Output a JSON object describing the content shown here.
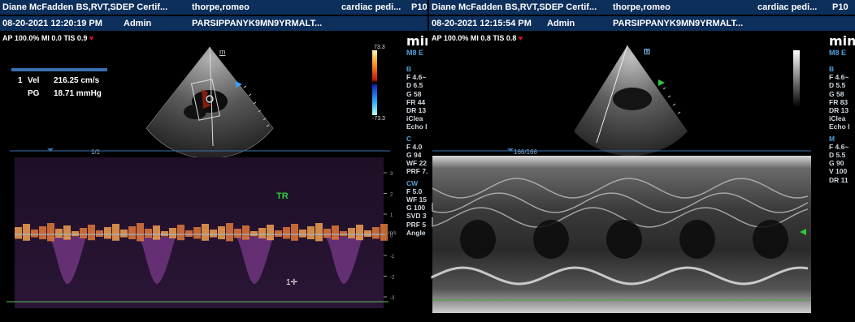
{
  "left": {
    "header": {
      "operator": "Diane McFadden BS,RVT,SDEP Certif...",
      "patient": "thorpe,romeo",
      "study": "cardiac pedi...",
      "probe": "P10",
      "datetime": "08-20-2021 12:20:19 PM",
      "user": "Admin",
      "patient_id": "PARSIPPANYK9MN9YRMALT..."
    },
    "subheader": "AP 100.0%  MI 0.0  TIS 0.9",
    "logo": "min",
    "model": "M8 E",
    "params": {
      "b_label": "B",
      "b_values": [
        "F 4.6~",
        "D 6.5",
        "G 58",
        "FR 44",
        "DR 13",
        "iClea",
        "Echo I"
      ],
      "c_label": "C",
      "c_values": [
        "F 4.0",
        "G 94",
        "WF 22",
        "PRF 7."
      ],
      "cw_label": "CW",
      "cw_values": [
        "F 5.0",
        "WF 15",
        "G 100",
        "SVD 3",
        "PRF 5",
        "Angle"
      ]
    },
    "measurement": {
      "marker": "1",
      "vel_label": "Vel",
      "vel_value": "216.25 cm/s",
      "pg_label": "PG",
      "pg_value": "18.71 mmHg"
    },
    "color_scale": {
      "top": "73.3",
      "bottom": "-73.3"
    },
    "depth_marker": "m",
    "spectrum_label": "TR",
    "cursor_label": "1",
    "frame_counter": "1/1",
    "scale_unit": "m/s",
    "scale_ticks": [
      "3",
      "2",
      "1",
      "0",
      "-1",
      "-2",
      "-3"
    ]
  },
  "right": {
    "header": {
      "operator": "Diane McFadden BS,RVT,SDEP Certif...",
      "patient": "thorpe,romeo",
      "study": "cardiac pedi...",
      "probe": "P10",
      "datetime": "08-20-2021 12:15:54 PM",
      "user": "Admin",
      "patient_id": "PARSIPPANYK9MN9YRMALT..."
    },
    "subheader": "AP 100.0%  MI 0.8  TIS 0.8",
    "logo": "min",
    "model": "M8 E",
    "params": {
      "b_label": "B",
      "b_values": [
        "F 4.6~",
        "D 5.5",
        "G 58",
        "FR 83",
        "DR 13",
        "iClea",
        "Echo I"
      ],
      "m_label": "M",
      "m_values": [
        "F 4.6~",
        "D 5.5",
        "G 90",
        "V 100",
        "DR 11"
      ]
    },
    "depth_marker": "m",
    "frame_counter": "166/166"
  },
  "colors": {
    "header_bg": "#0d2f5c",
    "param_section": "#4fa0d8",
    "doppler_bright": "#f0a050",
    "doppler_dim": "#5a2a6a",
    "baseline": "#4fa04f",
    "label_green": "#2ecc40",
    "heart": "#e0102a"
  }
}
